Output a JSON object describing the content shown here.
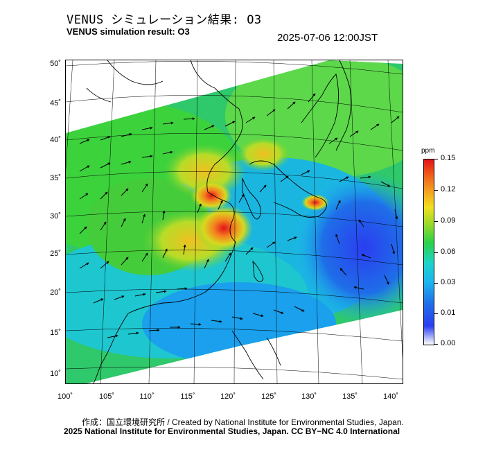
{
  "header": {
    "title_jp": "VENUS シミュレーション結果: O3",
    "title_en": "VENUS simulation result: O3",
    "datetime": "2025-07-06 12:00JST"
  },
  "map": {
    "lat_labels": [
      "50˚",
      "45˚",
      "40˚",
      "35˚",
      "30˚",
      "25˚",
      "20˚",
      "15˚",
      "10˚"
    ],
    "lon_labels": [
      "100˚",
      "105˚",
      "110˚",
      "115˚",
      "120˚",
      "125˚",
      "130˚",
      "135˚",
      "140˚"
    ]
  },
  "colorbar": {
    "unit": "ppm",
    "ticks": [
      "0.15",
      "0.12",
      "0.09",
      "0.06",
      "0.03",
      "0.01",
      "0.00"
    ],
    "colors": [
      "#ffffff",
      "#2a3ef0",
      "#1bb6f0",
      "#2bd24a",
      "#f0e020",
      "#f05a1a",
      "#e0141a"
    ]
  },
  "footer": {
    "credit_line1": "作成：国立環境研究所 / Created by National Institute for Environmental Studies, Japan.",
    "credit_line2": "2025 National Institute for Environmental Studies, Japan. CC BY−NC 4.0 International"
  }
}
